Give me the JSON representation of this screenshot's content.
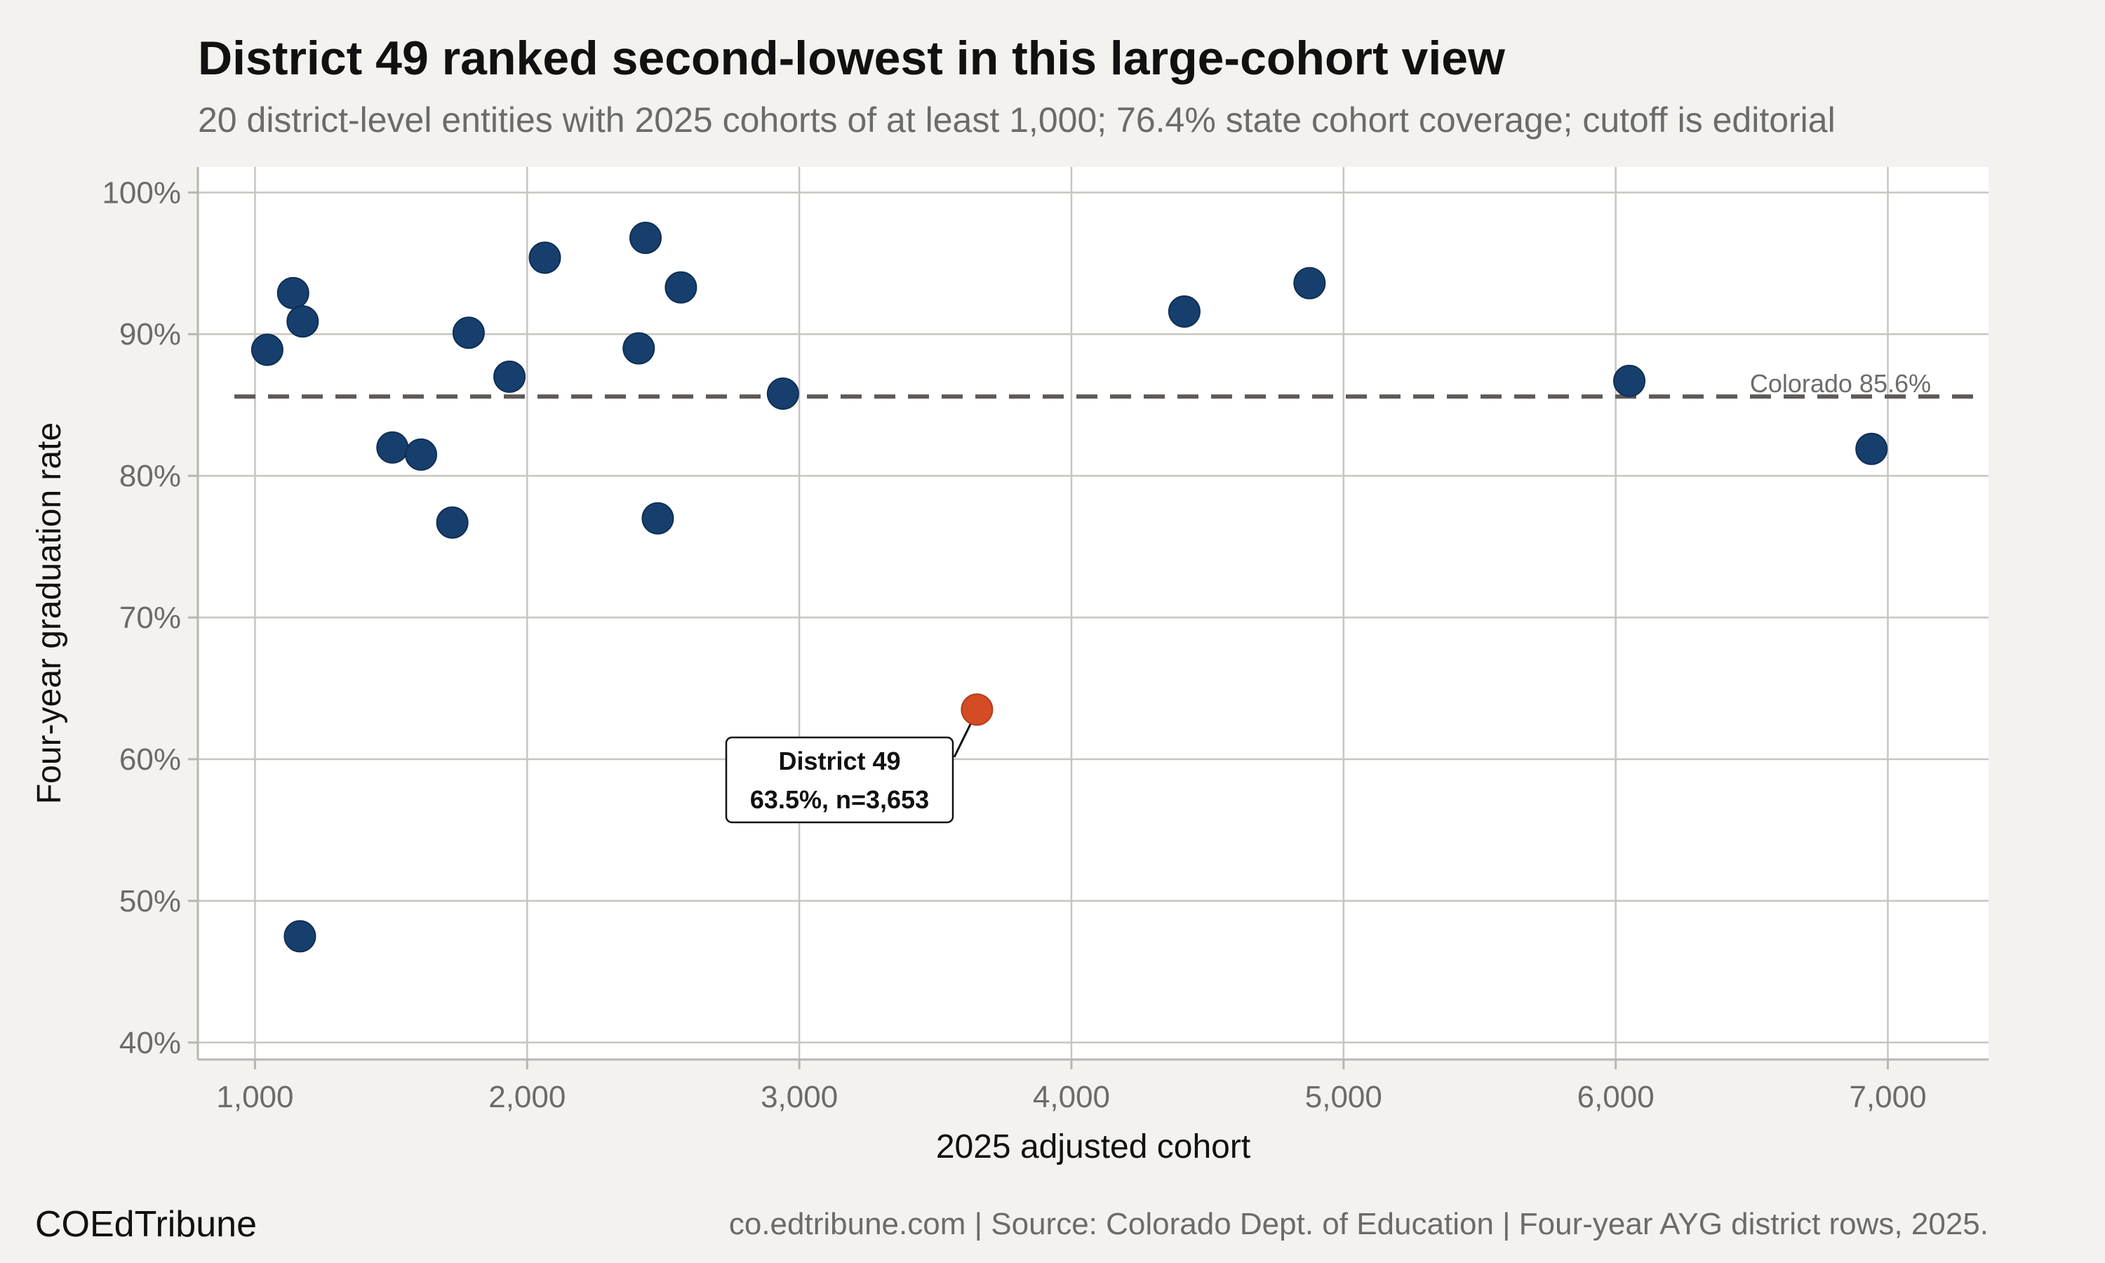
{
  "header": {
    "title": "District 49 ranked second-lowest in this large-cohort view",
    "subtitle": "20 district-level entities with 2025 cohorts of at least 1,000; 76.4% state cohort coverage; cutoff is editorial"
  },
  "footer": {
    "brand": "COEdTribune",
    "source": "co.edtribune.com | Source: Colorado Dept. of Education | Four-year AYG district rows, 2025."
  },
  "chart_data": {
    "type": "scatter",
    "xlabel": "2025 adjusted cohort",
    "ylabel": "Four-year graduation rate",
    "xlim": [
      790,
      7370
    ],
    "ylim": [
      38.8,
      101.8
    ],
    "x_ticks": [
      1000,
      2000,
      3000,
      4000,
      5000,
      6000,
      7000
    ],
    "x_tick_labels": [
      "1,000",
      "2,000",
      "3,000",
      "4,000",
      "5,000",
      "6,000",
      "7,000"
    ],
    "y_ticks": [
      40,
      50,
      60,
      70,
      80,
      90,
      100
    ],
    "y_tick_labels": [
      "40%",
      "50%",
      "60%",
      "70%",
      "80%",
      "90%",
      "100%"
    ],
    "grid": true,
    "colors": {
      "point": "#173f6d",
      "highlight": "#d34c25",
      "reference_line": "#5f5a57",
      "panel": "#ffffff",
      "gridline": "#c8c5bf"
    },
    "reference_line": {
      "y": 85.6,
      "label": "Colorado 85.6%"
    },
    "points": [
      {
        "x": 1045,
        "y": 88.9
      },
      {
        "x": 1140,
        "y": 92.9
      },
      {
        "x": 1175,
        "y": 90.9
      },
      {
        "x": 1165,
        "y": 47.5
      },
      {
        "x": 1505,
        "y": 82.0
      },
      {
        "x": 1610,
        "y": 81.5
      },
      {
        "x": 1725,
        "y": 76.7
      },
      {
        "x": 1785,
        "y": 90.1
      },
      {
        "x": 1935,
        "y": 87.0
      },
      {
        "x": 2065,
        "y": 95.4
      },
      {
        "x": 2410,
        "y": 89.0
      },
      {
        "x": 2435,
        "y": 96.8
      },
      {
        "x": 2480,
        "y": 77.0
      },
      {
        "x": 2565,
        "y": 93.3
      },
      {
        "x": 2940,
        "y": 85.8
      },
      {
        "x": 4415,
        "y": 91.6
      },
      {
        "x": 4875,
        "y": 93.6
      },
      {
        "x": 6050,
        "y": 86.7
      },
      {
        "x": 6940,
        "y": 81.9
      }
    ],
    "highlight": {
      "x": 3653,
      "y": 63.5,
      "label_title": "District 49",
      "label_detail": "63.5%, n=3,653"
    }
  }
}
